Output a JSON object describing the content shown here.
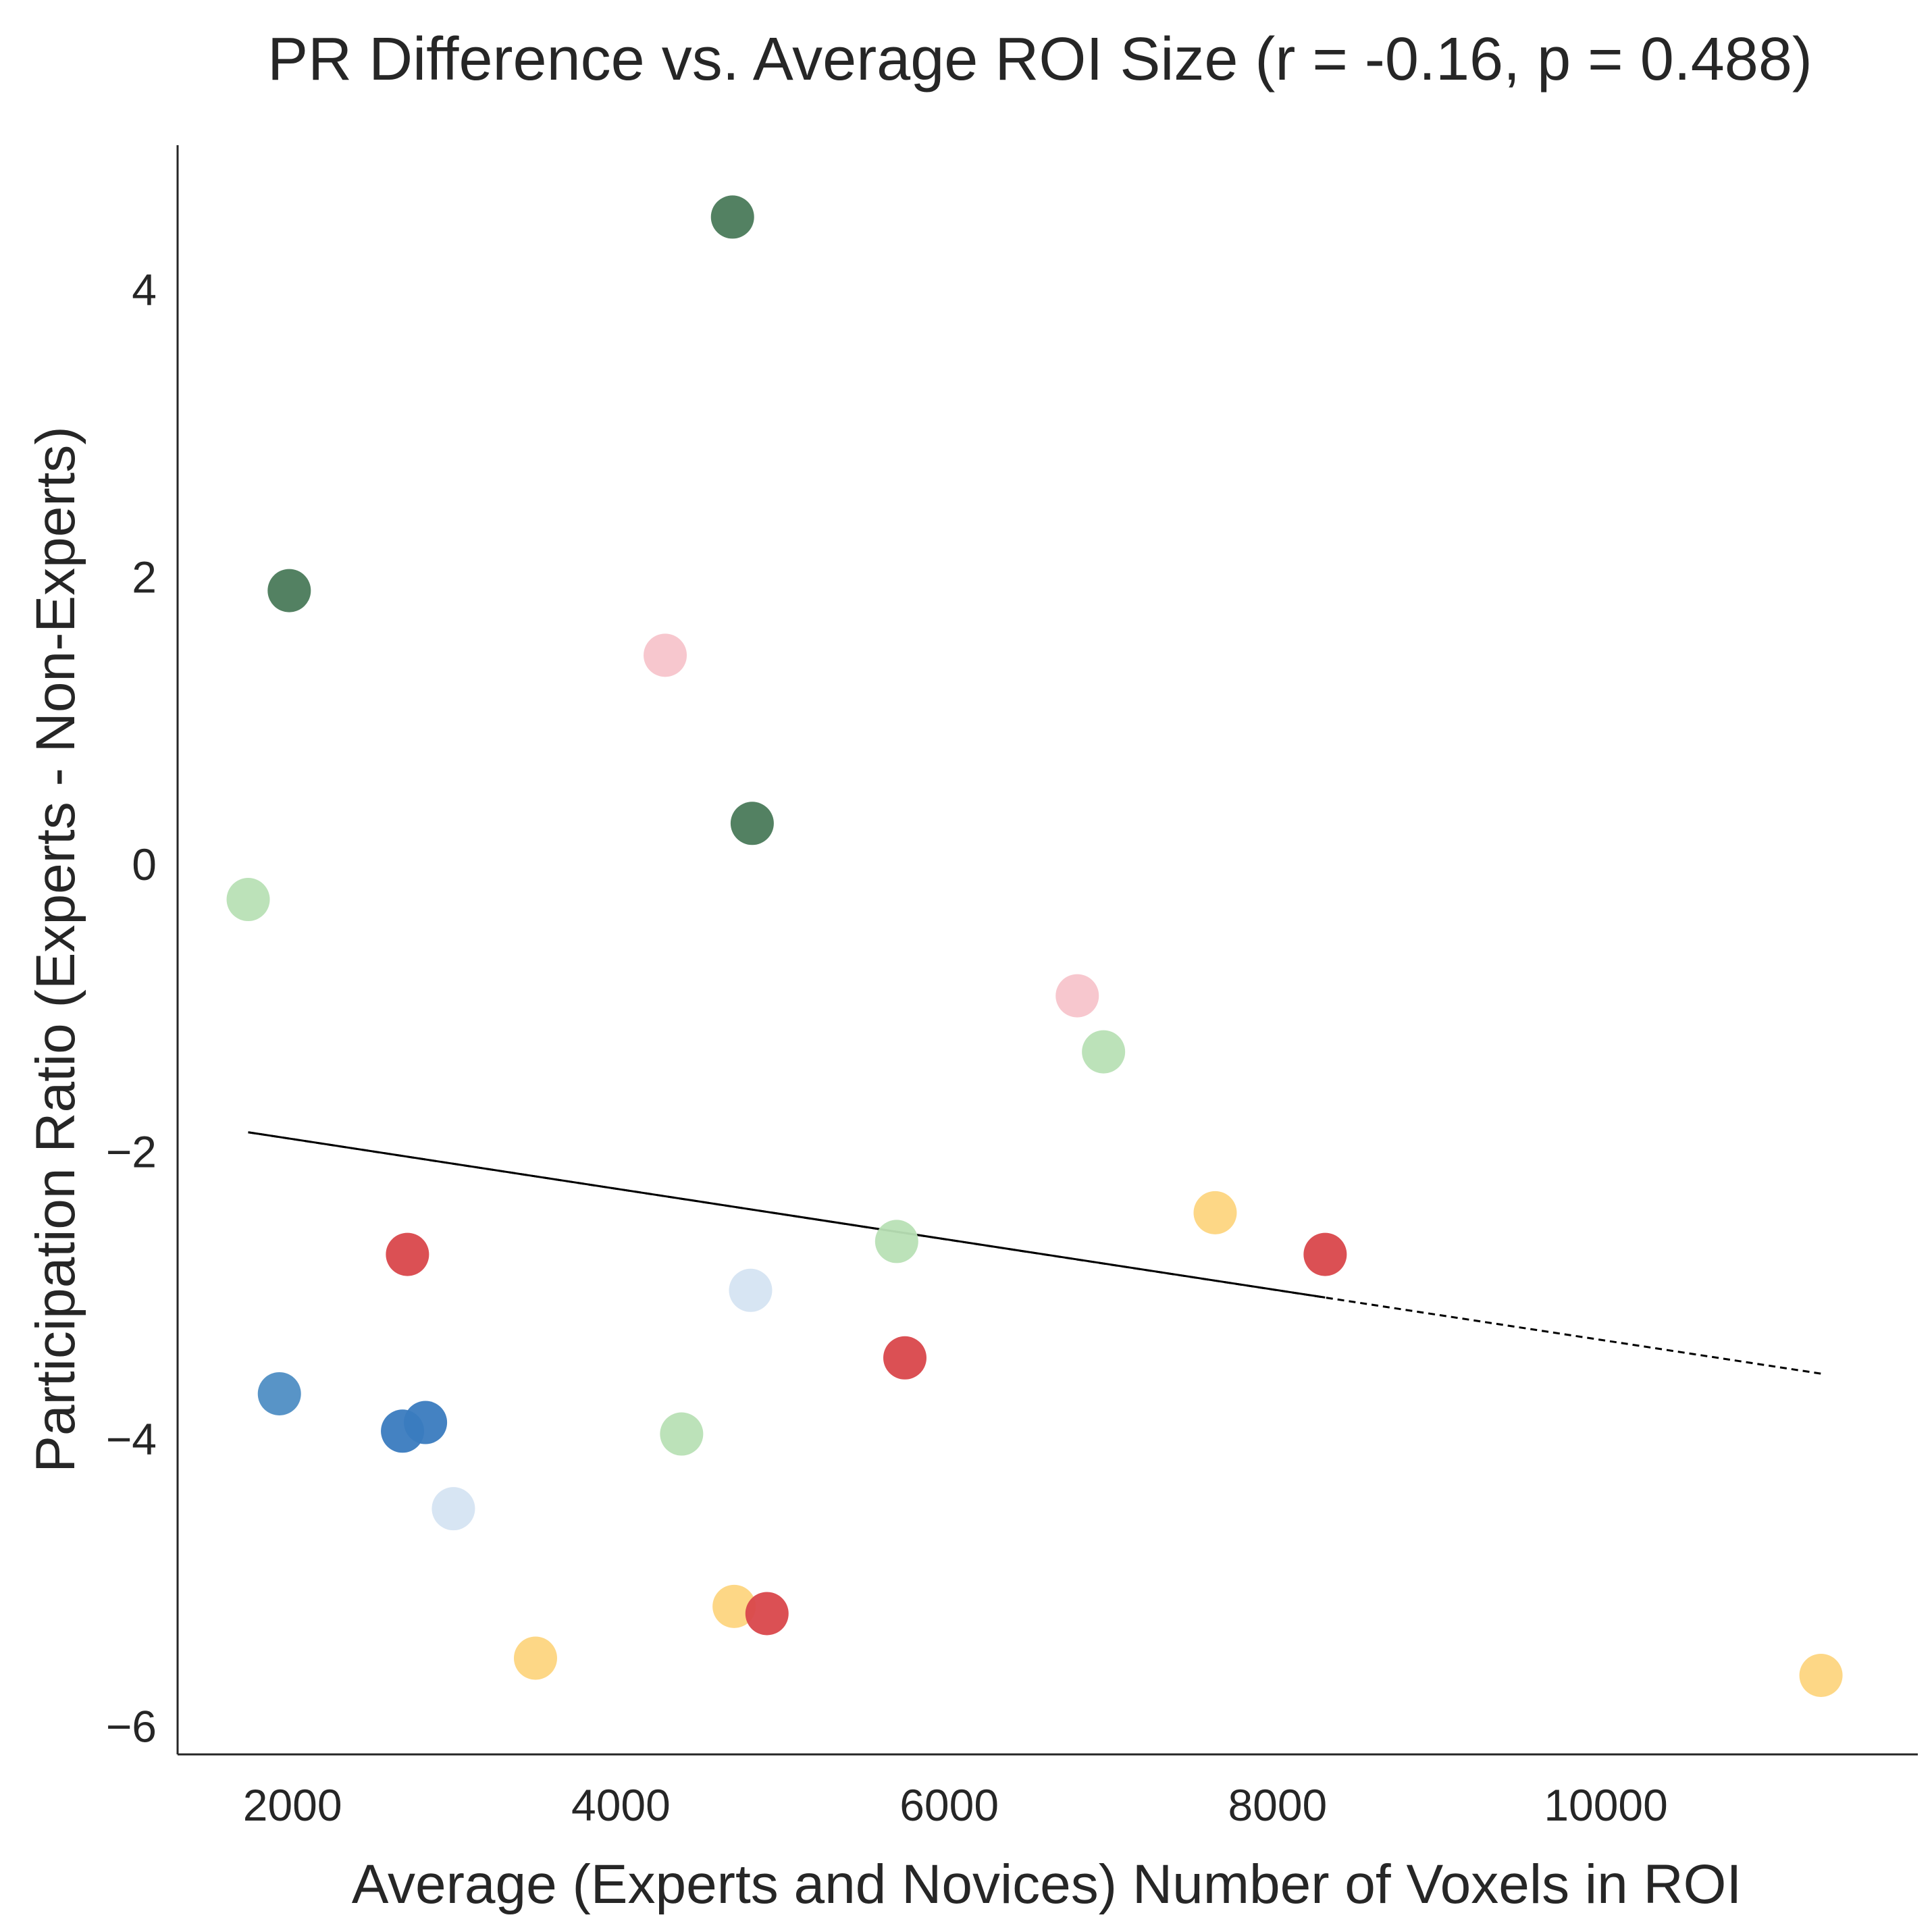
{
  "chart_data": {
    "type": "scatter",
    "title": "PR Difference vs. Average ROI Size (r = -0.16, p = 0.488)",
    "xlabel": "Average (Experts and Novices) Number of Voxels in ROI",
    "ylabel": "Participation Ratio (Experts - Non-Experts)",
    "xlim": [
      1300,
      11900
    ],
    "ylim": [
      -6.2,
      5.0
    ],
    "xticks": [
      2000,
      4000,
      6000,
      8000,
      10000
    ],
    "xtick_labels": [
      "2000",
      "4000",
      "6000",
      "8000",
      "10000"
    ],
    "yticks": [
      -6,
      -4,
      -2,
      0,
      2,
      4
    ],
    "ytick_labels": [
      "−6",
      "−4",
      "−2",
      "0",
      "2",
      "4"
    ],
    "grid": false,
    "legend": "none",
    "points": [
      {
        "x": 4680,
        "y": 4.5,
        "color": "#4a7a5a"
      },
      {
        "x": 1980,
        "y": 1.9,
        "color": "#4a7a5a"
      },
      {
        "x": 4800,
        "y": 0.28,
        "color": "#4a7a5a"
      },
      {
        "x": 4270,
        "y": 1.45,
        "color": "#f7c4cb"
      },
      {
        "x": 6780,
        "y": -0.92,
        "color": "#f7c4cb"
      },
      {
        "x": 1730,
        "y": -0.25,
        "color": "#b8e0b5"
      },
      {
        "x": 6940,
        "y": -1.31,
        "color": "#b8e0b5"
      },
      {
        "x": 5680,
        "y": -2.63,
        "color": "#b8e0b5"
      },
      {
        "x": 4370,
        "y": -3.97,
        "color": "#b8e0b5"
      },
      {
        "x": 7620,
        "y": -2.43,
        "color": "#fdd57f"
      },
      {
        "x": 3480,
        "y": -5.53,
        "color": "#fdd57f"
      },
      {
        "x": 4690,
        "y": -5.17,
        "color": "#fdd57f"
      },
      {
        "x": 11310,
        "y": -5.65,
        "color": "#fdd57f"
      },
      {
        "x": 2700,
        "y": -2.72,
        "color": "#d9474b"
      },
      {
        "x": 8290,
        "y": -2.72,
        "color": "#d9474b"
      },
      {
        "x": 5730,
        "y": -3.44,
        "color": "#d9474b"
      },
      {
        "x": 4890,
        "y": -5.22,
        "color": "#d9474b"
      },
      {
        "x": 4790,
        "y": -2.97,
        "color": "#d5e4f2"
      },
      {
        "x": 2980,
        "y": -4.49,
        "color": "#d5e4f2"
      },
      {
        "x": 1920,
        "y": -3.69,
        "color": "#4f8ec4"
      },
      {
        "x": 2670,
        "y": -3.95,
        "color": "#3a7bbf"
      },
      {
        "x": 2810,
        "y": -3.89,
        "color": "#3a7bbf"
      }
    ],
    "trend": {
      "solid": {
        "x": [
          1730,
          8290
        ],
        "y": [
          -1.87,
          -3.02
        ]
      },
      "dashed": {
        "x": [
          1730,
          11310
        ],
        "y": [
          -1.87,
          -3.55
        ]
      },
      "color": "#000000"
    }
  }
}
